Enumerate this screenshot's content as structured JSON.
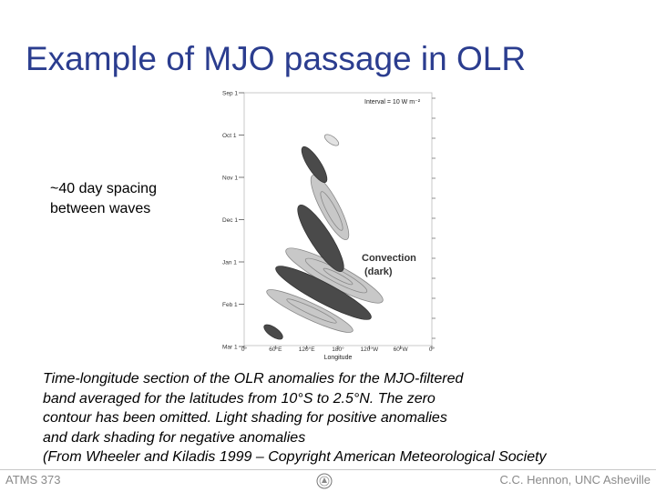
{
  "slide": {
    "title": "Example of MJO passage in OLR",
    "note": [
      "~40 day spacing",
      "between waves"
    ],
    "caption": [
      "Time-longitude section of the OLR anomalies for the MJO-filtered",
      "band averaged for the latitudes from 10°S to 2.5°N.  The zero",
      "contour has been omitted.  Light shading for positive anomalies",
      "and dark shading for negative anomalies",
      "(From Wheeler and Kiladis 1999 – Copyright American Meteorological Society"
    ]
  },
  "figure": {
    "interval_label": "Interval = 10 W m⁻²",
    "time_ticks": [
      "Sep 1",
      "Oct 1",
      "Nov 1",
      "Dec 1",
      "Jan 1",
      "Feb 1",
      "Mar 1"
    ],
    "lon_ticks": [
      "0°",
      "60°E",
      "120°E",
      "180°",
      "120°W",
      "60°W",
      "0°"
    ],
    "xlabel": "Longitude",
    "annotation": [
      "Convection",
      "(dark)"
    ],
    "colors": {
      "dark": "#4a4a4a",
      "light": "#c8c8c8",
      "contour": "#888888"
    }
  },
  "footer": {
    "left": "ATMS 373",
    "right": "C.C. Hennon, UNC Asheville",
    "logo_icon": "seal-icon"
  }
}
